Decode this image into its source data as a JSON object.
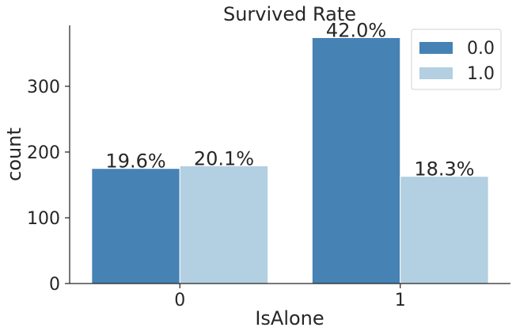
{
  "chart_data": {
    "type": "bar",
    "title": "Survived Rate",
    "xlabel": "IsAlone",
    "ylabel": "count",
    "categories": [
      "0",
      "1"
    ],
    "series": [
      {
        "name": "0.0",
        "values": [
          175,
          374
        ],
        "color": "#4682b4"
      },
      {
        "name": "1.0",
        "values": [
          179,
          163
        ],
        "color": "#b3cfe2"
      }
    ],
    "data_labels": [
      [
        "19.6%",
        "42.0%"
      ],
      [
        "20.1%",
        "18.3%"
      ]
    ],
    "ylim": [
      0,
      392.7
    ],
    "yticks": [
      0,
      100,
      200,
      300
    ],
    "legend": "top-right",
    "grid": false
  }
}
